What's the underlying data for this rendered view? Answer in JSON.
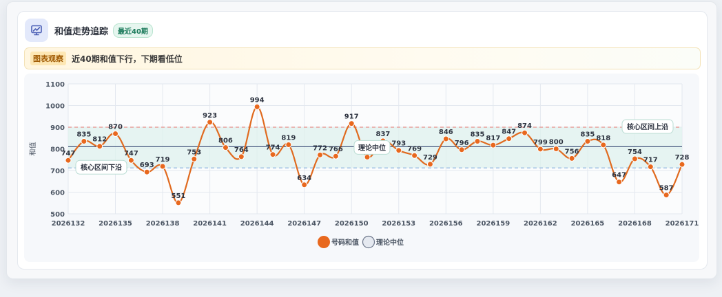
{
  "header": {
    "title": "和值走势追踪",
    "badge": "最近40期"
  },
  "observation": {
    "tag": "图表观察",
    "text": "近40期和值下行，下期看低位"
  },
  "colors": {
    "line": "#e06a1f",
    "point": "#e8681e",
    "band_fill": "#dff2ee",
    "upper_line": "#e88f8a",
    "lower_line": "#8fb3e0",
    "center_line": "#4a5b82"
  },
  "chart_data": {
    "type": "line",
    "ylabel": "和值",
    "ylim": [
      500,
      1100
    ],
    "yticks": [
      500,
      600,
      700,
      800,
      900,
      1000,
      1100
    ],
    "x": [
      "2026132",
      "2026133",
      "2026134",
      "2026135",
      "2026136",
      "2026137",
      "2026138",
      "2026139",
      "2026140",
      "2026141",
      "2026142",
      "2026143",
      "2026144",
      "2026145",
      "2026146",
      "2026147",
      "2026148",
      "2026149",
      "2026150",
      "2026151",
      "2026152",
      "2026153",
      "2026154",
      "2026155",
      "2026156",
      "2026157",
      "2026158",
      "2026159",
      "2026160",
      "2026161",
      "2026162",
      "2026163",
      "2026164",
      "2026165",
      "2026166",
      "2026167",
      "2026168",
      "2026169",
      "2026170",
      "2026171"
    ],
    "xtick_labels": [
      "2026132",
      "2026135",
      "2026138",
      "2026141",
      "2026144",
      "2026147",
      "2026150",
      "2026153",
      "2026156",
      "2026159",
      "2026162",
      "2026165",
      "2026168",
      "2026171"
    ],
    "series": [
      {
        "name": "号码和值",
        "values": [
          747,
          835,
          812,
          870,
          747,
          693,
          719,
          551,
          753,
          923,
          806,
          764,
          994,
          774,
          819,
          634,
          772,
          766,
          917,
          762,
          837,
          793,
          769,
          729,
          846,
          796,
          835,
          817,
          847,
          874,
          799,
          800,
          756,
          835,
          818,
          647,
          754,
          717,
          587,
          728
        ]
      },
      {
        "name": "理论中位",
        "values": [
          810,
          810,
          810,
          810,
          810,
          810,
          810,
          810,
          810,
          810,
          810,
          810,
          810,
          810,
          810,
          810,
          810,
          810,
          810,
          810,
          810,
          810,
          810,
          810,
          810,
          810,
          810,
          810,
          810,
          810,
          810,
          810,
          810,
          810,
          810,
          810,
          810,
          810,
          810,
          810
        ]
      }
    ],
    "reference_lines": {
      "upper": 900,
      "center": 810,
      "lower": 712
    },
    "annotations": {
      "upper_label": "核心区间上沿",
      "center_label": "理论中位",
      "lower_label": "核心区间下沿"
    },
    "legend_position": "bottom",
    "grid": true
  }
}
